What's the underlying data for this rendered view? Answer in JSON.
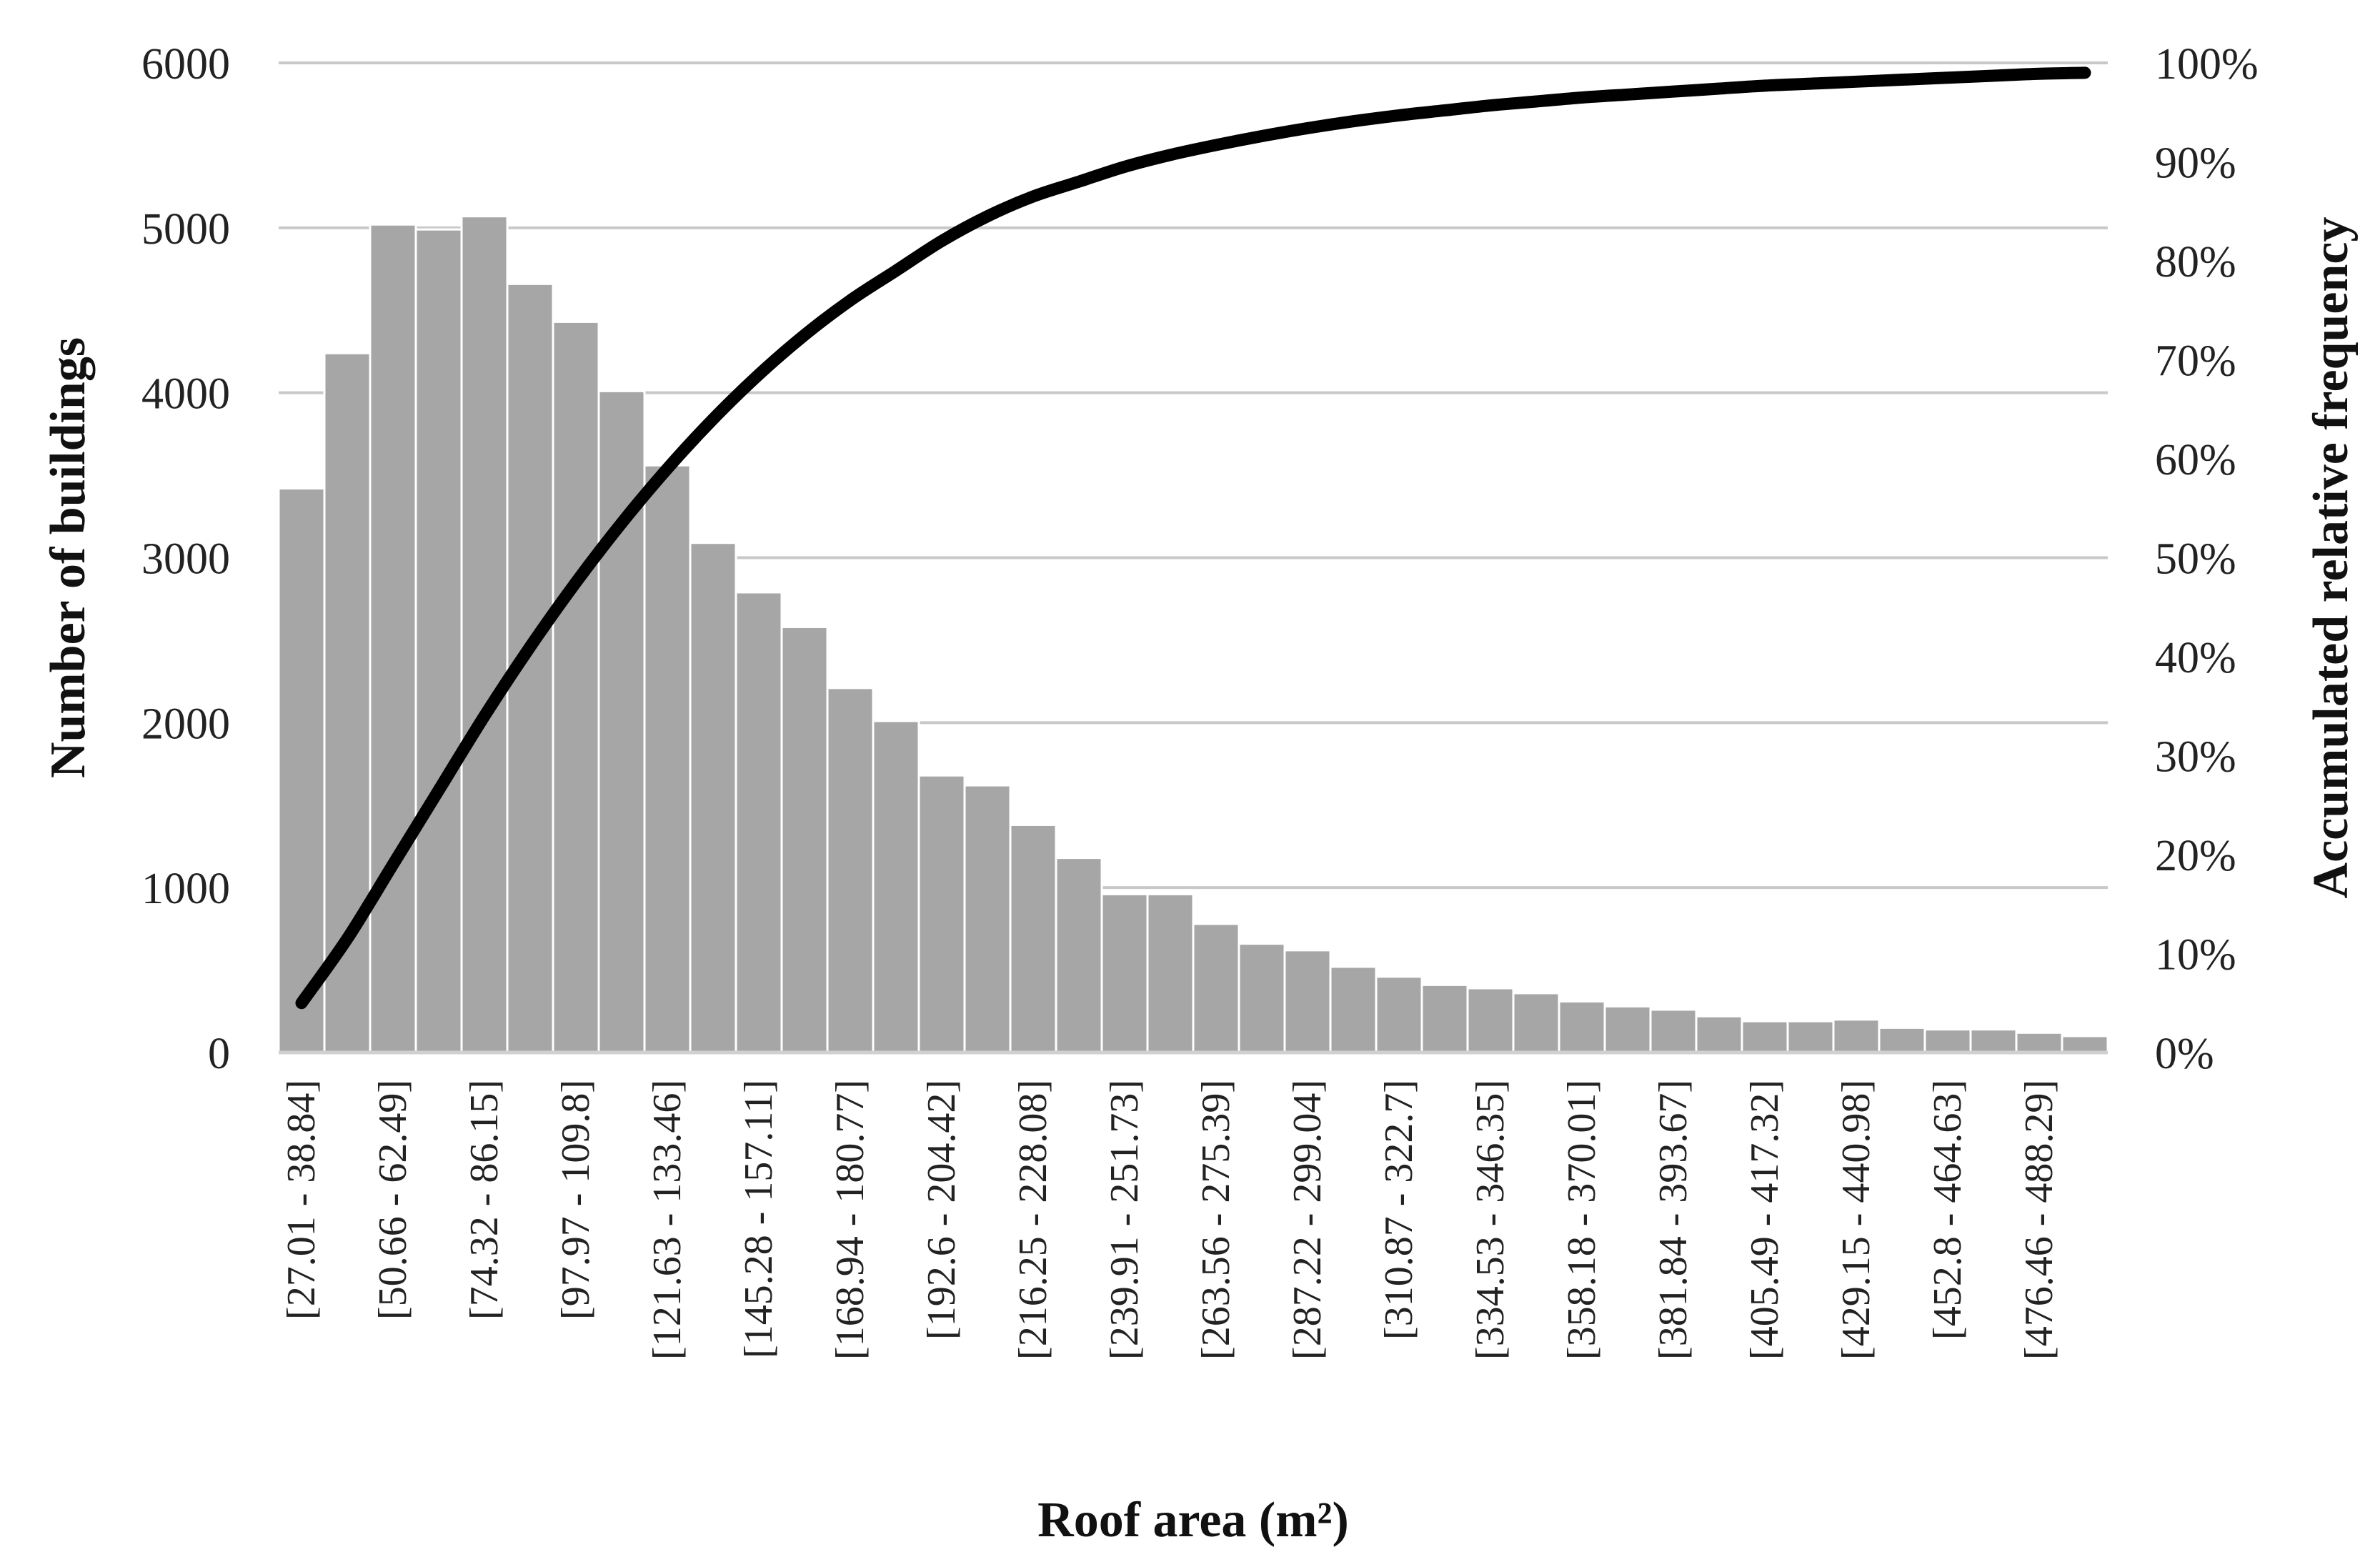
{
  "chart_data": {
    "type": "bar",
    "xlabel": "Roof area (m²)",
    "ylabel": "Number of buildings",
    "y2label": "Accumulated relative frequency",
    "ylim": [
      0,
      6000
    ],
    "y2lim": [
      0,
      100
    ],
    "yticks": [
      "0",
      "1000",
      "2000",
      "3000",
      "4000",
      "5000",
      "6000"
    ],
    "y2ticks": [
      "0%",
      "10%",
      "20%",
      "30%",
      "40%",
      "50%",
      "60%",
      "70%",
      "80%",
      "90%",
      "100%"
    ],
    "grid": true,
    "category_labels_every": 2,
    "categories": [
      "[27.01 - 38.84]",
      "",
      "[50.66 - 62.49]",
      "",
      "[74.32 - 86.15]",
      "",
      "[97.97 - 109.8]",
      "",
      "[121.63 - 133.46]",
      "",
      "[145.28 - 157.11]",
      "",
      "[168.94 - 180.77]",
      "",
      "[192.6 - 204.42]",
      "",
      "[216.25 - 228.08]",
      "",
      "[239.91 - 251.73]",
      "",
      "[263.56 - 275.39]",
      "",
      "[287.22 - 299.04]",
      "",
      "[310.87 - 322.7]",
      "",
      "[334.53 - 346.35]",
      "",
      "[358.18 - 370.01]",
      "",
      "[381.84 - 393.67]",
      "",
      "[405.49 - 417.32]",
      "",
      "[429.15 - 440.98]",
      "",
      "[452.8 - 464.63]",
      "",
      "[476.46 - 488.29]",
      ""
    ],
    "series": [
      {
        "type": "bar",
        "axis": "left",
        "color": "#a6a6a6",
        "values": [
          3420,
          4240,
          5020,
          4990,
          5070,
          4660,
          4430,
          4010,
          3560,
          3090,
          2790,
          2580,
          2210,
          2010,
          1680,
          1620,
          1380,
          1180,
          960,
          960,
          780,
          660,
          620,
          520,
          460,
          410,
          390,
          360,
          310,
          280,
          260,
          220,
          190,
          190,
          200,
          150,
          140,
          140,
          120,
          100
        ]
      },
      {
        "type": "line",
        "axis": "right",
        "color": "#000000",
        "values": [
          5.0,
          11.5,
          19.0,
          26.5,
          34.0,
          41.0,
          47.5,
          53.5,
          59.0,
          64.0,
          68.5,
          72.5,
          76.0,
          79.0,
          82.0,
          84.5,
          86.5,
          88.0,
          89.5,
          90.7,
          91.7,
          92.6,
          93.4,
          94.1,
          94.7,
          95.2,
          95.7,
          96.1,
          96.5,
          96.8,
          97.1,
          97.4,
          97.7,
          97.9,
          98.1,
          98.3,
          98.5,
          98.7,
          98.9,
          99.0
        ]
      }
    ]
  }
}
